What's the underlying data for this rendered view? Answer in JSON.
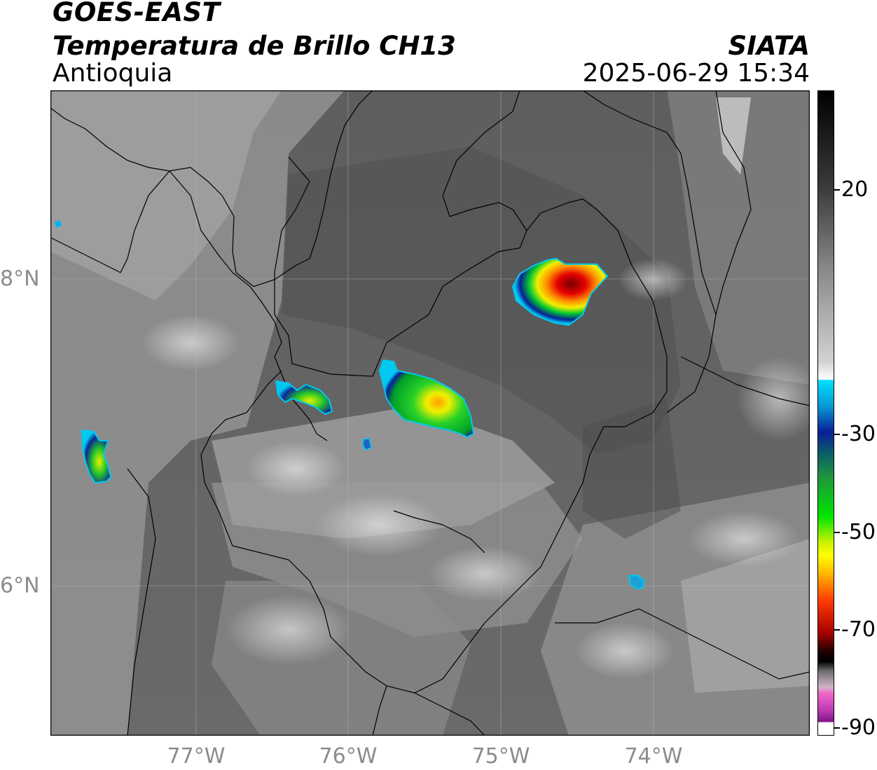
{
  "header": {
    "satellite": "GOES-EAST",
    "product": "Temperatura de Brillo CH13",
    "region": "Antioquia",
    "agency": "SIATA",
    "timestamp": "2025-06-29 15:34"
  },
  "axes": {
    "x_labels": [
      "77°W",
      "76°W",
      "75°W",
      "74°W"
    ],
    "y_labels": [
      "8°N",
      "6°N"
    ],
    "lon_range": [
      -77.95,
      -72.98
    ],
    "lat_range": [
      5.12,
      9.33
    ]
  },
  "colorbar": {
    "tick_labels": [
      "20",
      "-30",
      "-50",
      "-70",
      "-90"
    ],
    "tick_values": [
      20,
      -30,
      -50,
      -70,
      -90
    ],
    "range": [
      -91,
      38
    ],
    "colors": {
      "warm_gray": "#3a3a3a",
      "light_gray": "#f2f2f2",
      "cyan": "#00c8f0",
      "blue": "#0a1e96",
      "green": "#00c830",
      "yellow": "#f0f000",
      "orange": "#ff9600",
      "red": "#e60000",
      "dark_red": "#5a0000",
      "black": "#000000",
      "magenta": "#d25ac8",
      "purple": "#82148c"
    }
  },
  "storms": [
    {
      "name": "storm-northeast",
      "lon": -74.6,
      "lat": 7.95,
      "peak_temp": -62
    },
    {
      "name": "storm-central",
      "lon": -75.45,
      "lat": 7.18,
      "peak_temp": -45
    },
    {
      "name": "storm-west-small",
      "lon": -76.25,
      "lat": 7.25,
      "peak_temp": -40
    },
    {
      "name": "storm-far-west",
      "lon": -77.62,
      "lat": 6.8,
      "peak_temp": -38
    },
    {
      "name": "cell-south-east",
      "lon": -74.1,
      "lat": 6.02,
      "peak_temp": -22
    }
  ]
}
